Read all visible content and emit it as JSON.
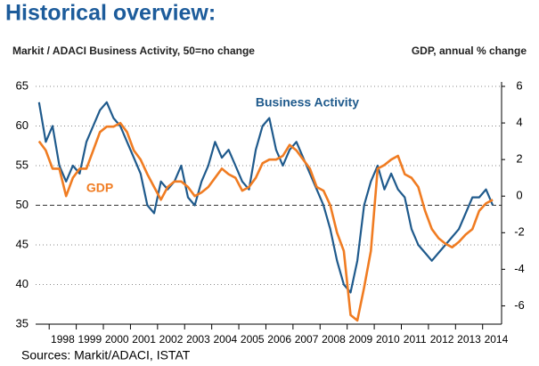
{
  "chart_data": {
    "type": "line",
    "title": "Historical overview:",
    "y_label": "Markit / ADACI  Business Activity, 50=no change",
    "y2_label": "GDP, annual % change",
    "source": "Sources: Markit/ADACI, ISTAT",
    "x": [
      1997.625,
      1997.875,
      1998.125,
      1998.375,
      1998.625,
      1998.875,
      1999.125,
      1999.375,
      1999.625,
      1999.875,
      2000.125,
      2000.375,
      2000.625,
      2000.875,
      2001.125,
      2001.375,
      2001.625,
      2001.875,
      2002.125,
      2002.375,
      2002.625,
      2002.875,
      2003.125,
      2003.375,
      2003.625,
      2003.875,
      2004.125,
      2004.375,
      2004.625,
      2004.875,
      2005.125,
      2005.375,
      2005.625,
      2005.875,
      2006.125,
      2006.375,
      2006.625,
      2006.875,
      2007.125,
      2007.375,
      2007.625,
      2007.875,
      2008.125,
      2008.375,
      2008.625,
      2008.875,
      2009.125,
      2009.375,
      2009.625,
      2009.875,
      2010.125,
      2010.375,
      2010.625,
      2010.875,
      2011.125,
      2011.375,
      2011.625,
      2011.875,
      2012.125,
      2012.375,
      2012.625,
      2012.875,
      2013.125,
      2013.375,
      2013.625,
      2013.875,
      2014.125,
      2014.375
    ],
    "series": [
      {
        "name": "Business Activity",
        "color": "#1f5a8c",
        "values": [
          63,
          58,
          60,
          55,
          53,
          55,
          54,
          58,
          60,
          62,
          63,
          61,
          60,
          58,
          56,
          54,
          50,
          49,
          53,
          52,
          53,
          55,
          51,
          50,
          53,
          55,
          58,
          56,
          57,
          55,
          53,
          52,
          57,
          60,
          61,
          57,
          55,
          57,
          58,
          56,
          54,
          52,
          50,
          47,
          43,
          40,
          39,
          43,
          50,
          53,
          55,
          52,
          54,
          52,
          51,
          47,
          45,
          44,
          43,
          44,
          45,
          46,
          47,
          49,
          51,
          51,
          52,
          50
        ]
      },
      {
        "name": "GDP",
        "color": "#f07c22",
        "axis": "y2",
        "values": [
          3,
          2.5,
          1.5,
          1.5,
          0,
          1,
          1.5,
          1.5,
          2.5,
          3.5,
          3.8,
          3.8,
          4,
          3.5,
          2.5,
          2,
          1.2,
          0.5,
          -0.2,
          0.5,
          0.8,
          0.8,
          0.5,
          0,
          0.2,
          0.5,
          1,
          1.5,
          1.2,
          1,
          0.3,
          0.5,
          1,
          1.8,
          2,
          2,
          2.2,
          2.8,
          2.5,
          2,
          1.5,
          0.5,
          0.3,
          -0.5,
          -2,
          -3,
          -6.5,
          -6.8,
          -5,
          -3,
          1.5,
          1.7,
          2,
          2.2,
          1.2,
          1,
          0.5,
          -0.8,
          -1.8,
          -2.3,
          -2.6,
          -2.8,
          -2.5,
          -2.1,
          -1.8,
          -0.8,
          -0.4,
          -0.2
        ]
      }
    ],
    "xlim": [
      1997.5,
      2014.7
    ],
    "xticks": [
      {
        "value": 1998.5,
        "label": "1998"
      },
      {
        "value": 1999.5,
        "label": "1999"
      },
      {
        "value": 2000.5,
        "label": "2000"
      },
      {
        "value": 2001.5,
        "label": "2001"
      },
      {
        "value": 2002.5,
        "label": "2002"
      },
      {
        "value": 2003.5,
        "label": "2003"
      },
      {
        "value": 2004.5,
        "label": "2004"
      },
      {
        "value": 2005.5,
        "label": "2005"
      },
      {
        "value": 2006.5,
        "label": "2006"
      },
      {
        "value": 2007.5,
        "label": "2007"
      },
      {
        "value": 2008.5,
        "label": "2008"
      },
      {
        "value": 2009.5,
        "label": "2009"
      },
      {
        "value": 2010.5,
        "label": "2010"
      },
      {
        "value": 2011.5,
        "label": "2011"
      },
      {
        "value": 2012.5,
        "label": "2012"
      },
      {
        "value": 2013.5,
        "label": "2013"
      },
      {
        "value": 2014.5,
        "label": "2014"
      }
    ],
    "ylim": [
      35,
      65
    ],
    "yticks": [
      35,
      40,
      45,
      50,
      55,
      60,
      65
    ],
    "y2lim": [
      -7,
      6
    ],
    "y2ticks": [
      -6,
      -4,
      -2,
      0,
      2,
      4,
      6
    ],
    "reference_line": 50,
    "grid": true
  }
}
